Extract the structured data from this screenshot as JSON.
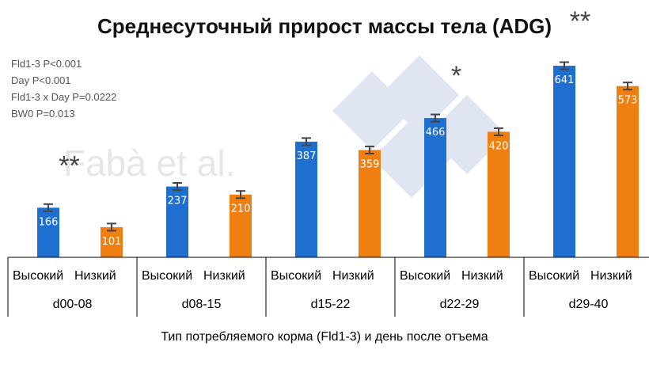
{
  "chart_data": {
    "type": "bar",
    "title": "Среднесуточный прирост массы тела (ADG)",
    "title_significance": "**",
    "stats_lines": [
      "Fld1-3 P<0.001",
      "Day P<0.001",
      "Fld1-3 x Day P=0.0222",
      "BW0 P=0.013"
    ],
    "watermark": "Fabà et al.",
    "xlabel": "Тип потребляемого корма (Fld1-3) и день после отъема",
    "ylabel": "",
    "ylim": [
      0,
      700
    ],
    "grid": false,
    "legend": "none",
    "groups": [
      "d00-08",
      "d08-15",
      "d15-22",
      "d22-29",
      "d29-40"
    ],
    "categories": [
      [
        "Высокий",
        "Низкий"
      ],
      [
        "Высокий",
        "Низкий"
      ],
      [
        "Высокий",
        "Низкий"
      ],
      [
        "Высокий",
        "Низкий"
      ],
      [
        "Высокий",
        "Низкий"
      ]
    ],
    "series": [
      {
        "name": "Высокий",
        "color": "#1f6fd1",
        "values": [
          166,
          237,
          387,
          466,
          641
        ],
        "errors": [
          12,
          12,
          12,
          12,
          12
        ]
      },
      {
        "name": "Низкий",
        "color": "#f07f12",
        "values": [
          101,
          210,
          359,
          420,
          573
        ],
        "errors": [
          12,
          12,
          12,
          12,
          12
        ]
      }
    ],
    "group_significance": [
      "**",
      "",
      "",
      "*",
      ""
    ]
  }
}
